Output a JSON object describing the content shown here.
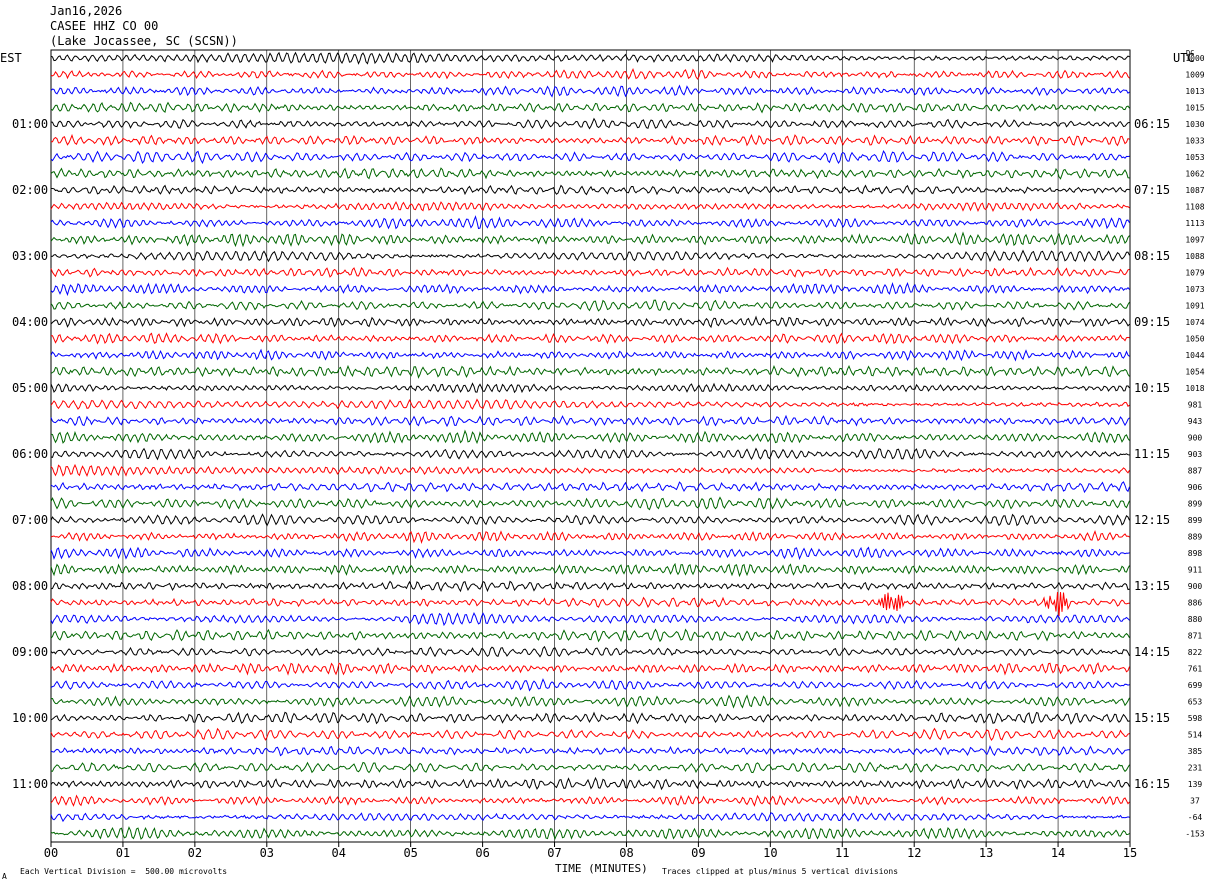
{
  "header": {
    "date": "Jan16,2026",
    "station": "CASEE HHZ CO 00",
    "location": "(Lake Jocassee, SC (SCSN))"
  },
  "left_corner_label": "EST",
  "right_corner_label": "UTC",
  "dc_header": "DC",
  "footer": {
    "left": "Each Vertical Division =  500.00 microvolts",
    "right": "Traces clipped at plus/minus 5 vertical divisions",
    "corner_mark": "A"
  },
  "trace_colors": [
    "#000000",
    "#ff0000",
    "#0000ff",
    "#006600"
  ],
  "chart_data": {
    "type": "line",
    "xlabel": "TIME (MINUTES)",
    "xticks": [
      "00",
      "01",
      "02",
      "03",
      "04",
      "05",
      "06",
      "07",
      "08",
      "09",
      "10",
      "11",
      "12",
      "13",
      "14",
      "15"
    ],
    "xlim": [
      0,
      15
    ],
    "est_hour_labels": [
      "01:00",
      "02:00",
      "03:00",
      "04:00",
      "05:00",
      "06:00",
      "07:00",
      "08:00",
      "09:00",
      "10:00",
      "11:00"
    ],
    "utc_hour_labels": [
      "06:15",
      "07:15",
      "08:15",
      "09:15",
      "10:15",
      "11:15",
      "12:15",
      "13:15",
      "14:15",
      "15:15",
      "16:15"
    ],
    "dc_offsets": [
      1000,
      1009,
      1013,
      1015,
      1030,
      1033,
      1053,
      1062,
      1087,
      1108,
      1113,
      1097,
      1088,
      1079,
      1073,
      1091,
      1074,
      1050,
      1044,
      1054,
      1018,
      981,
      943,
      900,
      903,
      887,
      906,
      899,
      899,
      889,
      898,
      911,
      900,
      886,
      880,
      871,
      822,
      761,
      699,
      653,
      598,
      514,
      385,
      231,
      139,
      37,
      -64,
      -153
    ],
    "events": [
      {
        "trace_index": 33,
        "minute": 11.7,
        "amplitude": "large"
      },
      {
        "trace_index": 33,
        "minute": 14.0,
        "amplitude": "large"
      }
    ]
  }
}
